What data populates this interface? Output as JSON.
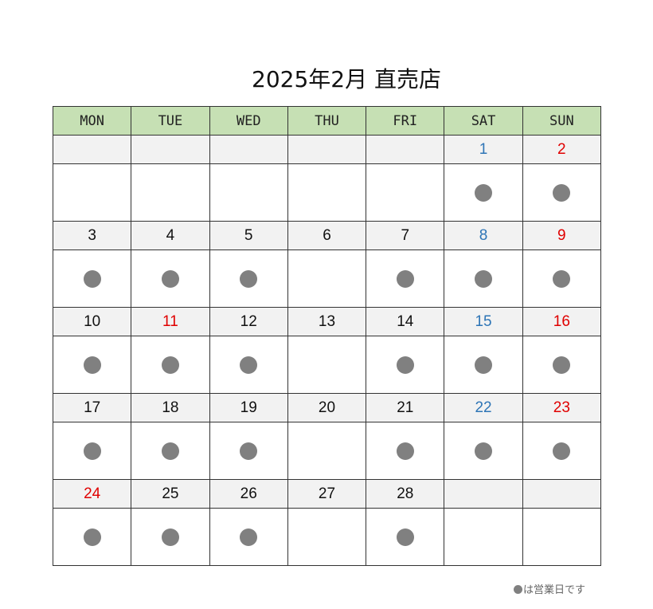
{
  "title": "2025年2月 直売店",
  "weekdays": [
    "MON",
    "TUE",
    "WED",
    "THU",
    "FRI",
    "SAT",
    "SUN"
  ],
  "colors": {
    "header_bg": "#c6e0b4",
    "date_row_bg": "#f2f2f2",
    "normal": "#111111",
    "saturday": "#2e75b6",
    "holiday": "#e00000",
    "dot": "#808080"
  },
  "weeks": [
    [
      null,
      null,
      null,
      null,
      null,
      {
        "day": "1",
        "type": "saturday",
        "open": true
      },
      {
        "day": "2",
        "type": "holiday",
        "open": true
      }
    ],
    [
      {
        "day": "3",
        "type": "normal",
        "open": true
      },
      {
        "day": "4",
        "type": "normal",
        "open": true
      },
      {
        "day": "5",
        "type": "normal",
        "open": true
      },
      {
        "day": "6",
        "type": "normal",
        "open": false
      },
      {
        "day": "7",
        "type": "normal",
        "open": true
      },
      {
        "day": "8",
        "type": "saturday",
        "open": true
      },
      {
        "day": "9",
        "type": "holiday",
        "open": true
      }
    ],
    [
      {
        "day": "10",
        "type": "normal",
        "open": true
      },
      {
        "day": "11",
        "type": "holiday",
        "open": true
      },
      {
        "day": "12",
        "type": "normal",
        "open": true
      },
      {
        "day": "13",
        "type": "normal",
        "open": false
      },
      {
        "day": "14",
        "type": "normal",
        "open": true
      },
      {
        "day": "15",
        "type": "saturday",
        "open": true
      },
      {
        "day": "16",
        "type": "holiday",
        "open": true
      }
    ],
    [
      {
        "day": "17",
        "type": "normal",
        "open": true
      },
      {
        "day": "18",
        "type": "normal",
        "open": true
      },
      {
        "day": "19",
        "type": "normal",
        "open": true
      },
      {
        "day": "20",
        "type": "normal",
        "open": false
      },
      {
        "day": "21",
        "type": "normal",
        "open": true
      },
      {
        "day": "22",
        "type": "saturday",
        "open": true
      },
      {
        "day": "23",
        "type": "holiday",
        "open": true
      }
    ],
    [
      {
        "day": "24",
        "type": "holiday",
        "open": true
      },
      {
        "day": "25",
        "type": "normal",
        "open": true
      },
      {
        "day": "26",
        "type": "normal",
        "open": true
      },
      {
        "day": "27",
        "type": "normal",
        "open": false
      },
      {
        "day": "28",
        "type": "normal",
        "open": true
      },
      null,
      null
    ]
  ],
  "legend": {
    "text": "は営業日です"
  }
}
